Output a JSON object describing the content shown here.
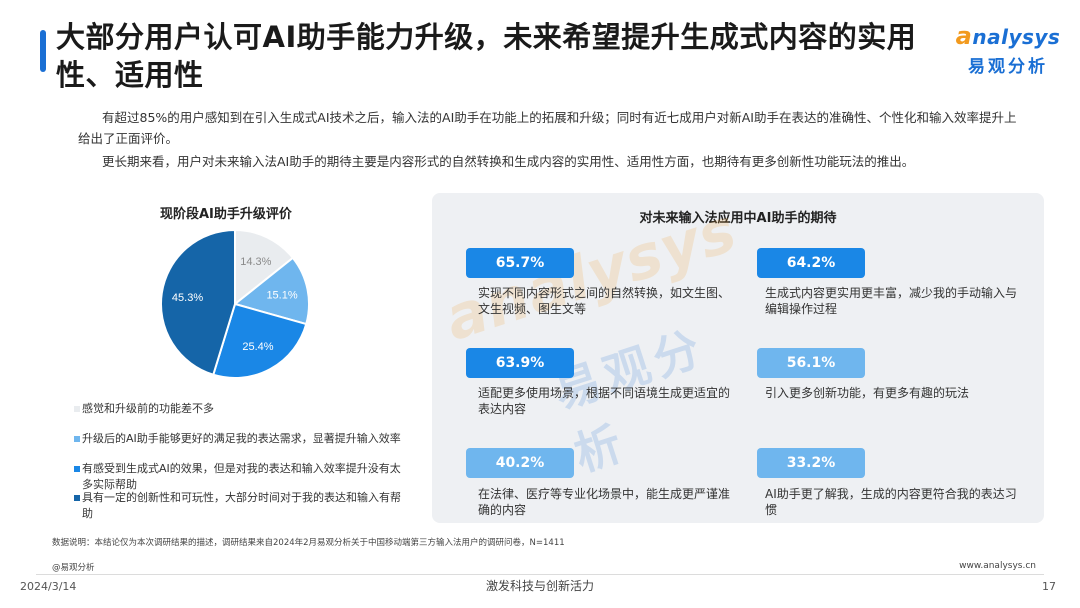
{
  "header": {
    "title": "大部分用户认可AI助手能力升级，未来希望提升生成式内容的实用性、适用性",
    "logo_en_a": "a",
    "logo_en_rest": "nalysys",
    "logo_cn": "易观分析"
  },
  "intro": {
    "para1": "有超过85%的用户感知到在引入生成式AI技术之后，输入法的AI助手在功能上的拓展和升级；同时有近七成用户对新AI助手在表达的准确性、个性化和输入效率提升上给出了正面评价。",
    "para2": "更长期来看，用户对未来输入法AI助手的期待主要是内容形式的自然转换和生成内容的实用性、适用性方面，也期待有更多创新性功能玩法的推出。"
  },
  "chart_data": {
    "type": "pie",
    "title": "现阶段AI助手升级评价",
    "series": [
      {
        "name": "感觉和升级前的功能差不多",
        "value": 14.3,
        "label": "14.3%",
        "color": "#e9ecef",
        "label_color": "#8a8a8a"
      },
      {
        "name": "升级后的AI助手能够更好的满足我的表达需求，显著提升输入效率",
        "value": 15.1,
        "label": "15.1%",
        "color": "#6fb6ee",
        "label_color": "#ffffff"
      },
      {
        "name": "有感受到生成式AI的效果，但是对我的表达和输入效率提升没有太多实际帮助",
        "value": 25.4,
        "label": "25.4%",
        "color": "#1a87e6",
        "label_color": "#ffffff"
      },
      {
        "name": "具有一定的创新性和可玩性，大部分时间对于我的表达和输入有帮助",
        "value": 45.3,
        "label": "45.3%",
        "color": "#1565a8",
        "label_color": "#ffffff"
      }
    ]
  },
  "expectations": {
    "title": "对未来输入法应用中AI助手的期待",
    "items": [
      {
        "pct": "65.7%",
        "text": "实现不同内容形式之间的自然转换，如文生图、文生视频、图生文等"
      },
      {
        "pct": "64.2%",
        "text": "生成式内容更实用更丰富，减少我的手动输入与编辑操作过程"
      },
      {
        "pct": "63.9%",
        "text": "适配更多使用场景，根据不同语境生成更适宜的表达内容"
      },
      {
        "pct": "56.1%",
        "text": "引入更多创新功能，有更多有趣的玩法"
      },
      {
        "pct": "40.2%",
        "text": "在法律、医疗等专业化场景中，能生成更严谨准确的内容"
      },
      {
        "pct": "33.2%",
        "text": "AI助手更了解我，生成的内容更符合我的表达习惯"
      }
    ],
    "badge_colors": [
      "#1a87e6",
      "#1a87e6",
      "#1a87e6",
      "#6fb6ee",
      "#6fb6ee",
      "#6fb6ee"
    ]
  },
  "watermark": {
    "en": "analysys",
    "cn": "易观分析"
  },
  "footer": {
    "note": "数据说明：本结论仅为本次调研结果的描述，调研结果来自2024年2月易观分析关于中国移动端第三方输入法用户的调研问卷，N=1411",
    "source": "@易观分析",
    "url": "www.analysys.cn",
    "date": "2024/3/14",
    "slogan": "激发科技与创新活力",
    "page": "17"
  }
}
